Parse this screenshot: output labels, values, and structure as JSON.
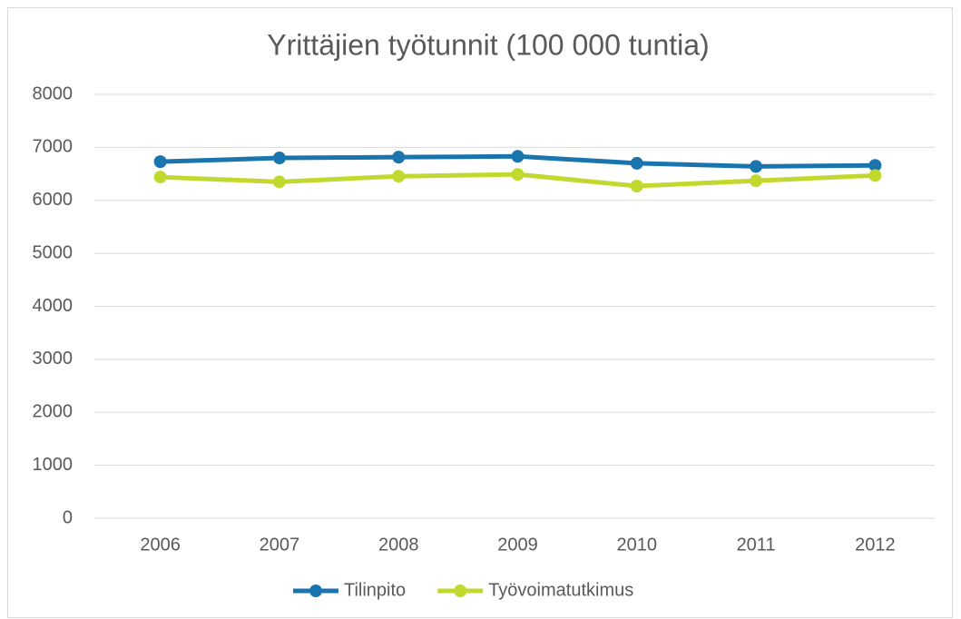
{
  "chart_data": {
    "type": "line",
    "title": "Yrittäjien työtunnit (100 000 tuntia)",
    "categories": [
      "2006",
      "2007",
      "2008",
      "2009",
      "2010",
      "2011",
      "2012"
    ],
    "series": [
      {
        "name": "Tilinpito",
        "color": "#1a75ae",
        "values": [
          6730,
          6800,
          6815,
          6830,
          6700,
          6640,
          6660
        ]
      },
      {
        "name": "Työvoimatutkimus",
        "color": "#c1d82f",
        "values": [
          6440,
          6350,
          6455,
          6490,
          6270,
          6370,
          6470
        ]
      }
    ],
    "ylim": [
      0,
      8000
    ],
    "yticks": [
      0,
      1000,
      2000,
      3000,
      4000,
      5000,
      6000,
      7000,
      8000
    ],
    "grid": true,
    "legend": "bottom"
  }
}
